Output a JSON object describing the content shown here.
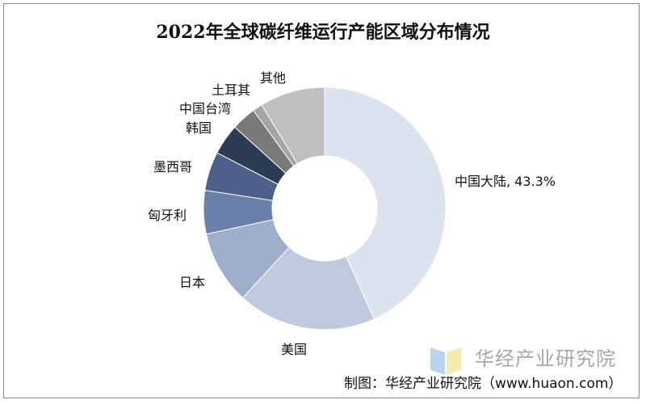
{
  "chart_data": {
    "type": "pie",
    "subtype": "donut",
    "title": "2022年全球碳纤维运行产能区域分布情况",
    "unit": "%",
    "categories": [
      "中国大陆",
      "美国",
      "日本",
      "匈牙利",
      "墨西哥",
      "韩国",
      "中国台湾",
      "土耳其",
      "其他"
    ],
    "values": [
      43.3,
      18.5,
      9.8,
      5.8,
      5.2,
      4.1,
      3.3,
      1.3,
      8.7
    ],
    "data_labels": [
      "中国大陆, 43.3%",
      "美国",
      "日本",
      "匈牙利",
      "墨西哥",
      "韩国",
      "中国台湾",
      "土耳其",
      "其他"
    ],
    "colors": [
      "#dce3ef",
      "#bfcadf",
      "#9eaecb",
      "#6a80aa",
      "#4d6089",
      "#2e3b55",
      "#7a7a7a",
      "#a5a5a5",
      "#bfbfbf"
    ],
    "start": "top, clockwise",
    "legend": "none"
  },
  "watermark": "华经产业研究院",
  "source": "制图：华经产业研究院（www.huaon.com）"
}
